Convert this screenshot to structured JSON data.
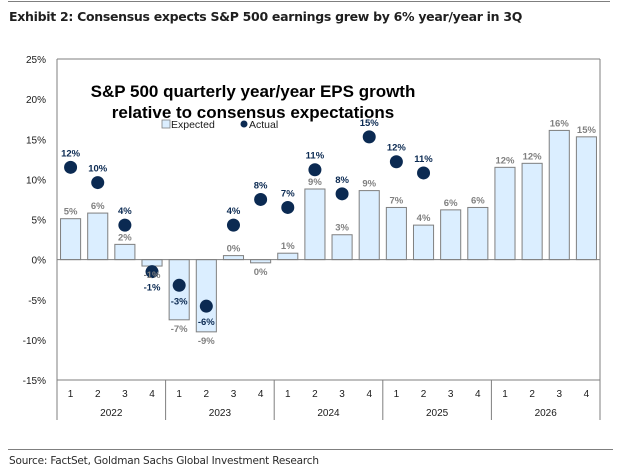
{
  "exhibit_title": "Exhibit 2: Consensus expects S&P 500 earnings grew by 6% year/year in 3Q",
  "source": "Source: FactSet, Goldman Sachs Global Investment Research",
  "colors": {
    "expected_fill": "#dbeeff",
    "expected_stroke": "#7f7f7f",
    "actual_marker": "#0b2a52",
    "expected_label": "#808080",
    "actual_label": "#0b2a52"
  },
  "chart_data": {
    "type": "bar",
    "title_lines": [
      "S&P 500 quarterly year/year EPS growth",
      "relative to consensus expectations"
    ],
    "xlabel": "",
    "ylabel": "",
    "ylim": [
      -15,
      25
    ],
    "yticks": [
      25,
      20,
      15,
      10,
      5,
      0,
      -5,
      -10,
      -15
    ],
    "ytick_labels": [
      "25%",
      "20%",
      "15%",
      "10%",
      "5%",
      "0%",
      "-5%",
      "-10%",
      "-15%"
    ],
    "grid": false,
    "legend": {
      "placement": "top-center",
      "entries": [
        "Expected",
        "Actual"
      ]
    },
    "categories": [
      "1",
      "2",
      "3",
      "4",
      "1",
      "2",
      "3",
      "4",
      "1",
      "2",
      "3",
      "4",
      "1",
      "2",
      "3",
      "4",
      "1",
      "2",
      "3",
      "4"
    ],
    "year_groups": [
      {
        "label": "2022",
        "count": 4
      },
      {
        "label": "2023",
        "count": 4
      },
      {
        "label": "2024",
        "count": 4
      },
      {
        "label": "2025",
        "count": 4
      },
      {
        "label": "2026",
        "count": 4
      }
    ],
    "series": [
      {
        "name": "Expected",
        "kind": "bar",
        "values": [
          5,
          6,
          2,
          -1,
          -7,
          -9,
          0,
          0,
          1,
          9,
          3,
          9,
          7,
          4,
          6,
          6,
          12,
          12,
          16,
          15
        ],
        "plot_values": [
          5.1,
          5.8,
          1.9,
          -0.8,
          -7.5,
          -9.0,
          0.5,
          -0.4,
          0.8,
          8.8,
          3.1,
          8.6,
          6.5,
          4.3,
          6.2,
          6.5,
          11.5,
          12.0,
          16.1,
          15.3
        ],
        "labels": [
          "5%",
          "6%",
          "2%",
          "-1%",
          "-7%",
          "-9%",
          "0%",
          "0%",
          "1%",
          "9%",
          "3%",
          "9%",
          "7%",
          "4%",
          "6%",
          "6%",
          "12%",
          "12%",
          "16%",
          "15%"
        ]
      },
      {
        "name": "Actual",
        "kind": "scatter",
        "values": [
          12,
          10,
          4,
          -1,
          -3,
          -6,
          4,
          8,
          7,
          11,
          8,
          15,
          12,
          11,
          null,
          null,
          null,
          null,
          null,
          null
        ],
        "plot_values": [
          11.5,
          9.6,
          4.3,
          -1.5,
          -3.2,
          -5.8,
          4.3,
          7.5,
          6.5,
          11.2,
          8.2,
          15.3,
          12.2,
          10.8,
          null,
          null,
          null,
          null,
          null,
          null
        ],
        "labels": [
          "12%",
          "10%",
          "4%",
          "-1%",
          "-3%",
          "-6%",
          "4%",
          "8%",
          "7%",
          "11%",
          "8%",
          "15%",
          "12%",
          "11%",
          null,
          null,
          null,
          null,
          null,
          null
        ]
      }
    ]
  }
}
